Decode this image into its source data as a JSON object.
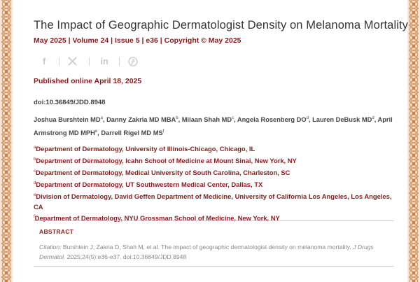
{
  "article": {
    "title": "The Impact of Geographic Dermatologist Density on Melanoma Mortality",
    "issue_line": "May 2025 | Volume 24 | Issue 5 | e36 | Copyright © May 2025",
    "published": "Published online April 18, 2025",
    "doi": "doi:10.36849/JDD.8948"
  },
  "share": {
    "icons": [
      "facebook-icon",
      "x-icon",
      "linkedin-icon",
      "pinterest-icon"
    ],
    "facebook_glyph": "f",
    "linkedin_glyph": "in"
  },
  "authors": [
    {
      "name": "Joshua Burshtein MD",
      "sup": "a",
      "sep": ", "
    },
    {
      "name": "Danny Zakria MD MBA",
      "sup": "b",
      "sep": ", "
    },
    {
      "name": "Milaan Shah MD",
      "sup": "c",
      "sep": ", "
    },
    {
      "name": "Angela Rosenberg DO",
      "sup": "d",
      "sep": ", "
    },
    {
      "name": "Lauren DeBusk MD",
      "sup": "d",
      "sep": ", "
    },
    {
      "name": "April Armstrong MD MPH",
      "sup": "e",
      "sep": ", "
    },
    {
      "name": "Darrell Rigel MD MS",
      "sup": "f",
      "sep": ""
    }
  ],
  "affiliations": [
    {
      "sup": "a",
      "text": "Department of Dermatology, University of Illinois-Chicago, Chicago, IL"
    },
    {
      "sup": "b",
      "text": "Department of Dermatology, Icahn School of Medicine at Mount Sinai, New York, NY"
    },
    {
      "sup": "c",
      "text": "Department of Dermatology, Medical University of South Carolina, Charleston, SC"
    },
    {
      "sup": "d",
      "text": "Department of Dermatology, UT Southwestern Medical Center, Dallas, TX"
    },
    {
      "sup": "e",
      "text": "Division of Dermatology, David Geffen Department of Medicine, University of California Los Angeles, Los Angeles, CA"
    },
    {
      "sup": "f",
      "text": "Department of Dermatology, NYU Grossman School of Medicine, New York, NY"
    }
  ],
  "abstract": {
    "label": "ABSTRACT",
    "citation_prefix": "Citation:",
    "citation_text": " Burshtein J, Zakria D, Shah M, et al. The impact of geographic dermatologist density on melanoma mortality. ",
    "citation_journal": "J Drugs Dermatol.",
    "citation_suffix": " 2025;24(5):e36-e37. doi:10.36849/JDD.8948"
  },
  "colors": {
    "accent": "#8b1a1a",
    "title": "#333333",
    "muted": "#888888",
    "border_pattern": "#c8824a"
  }
}
